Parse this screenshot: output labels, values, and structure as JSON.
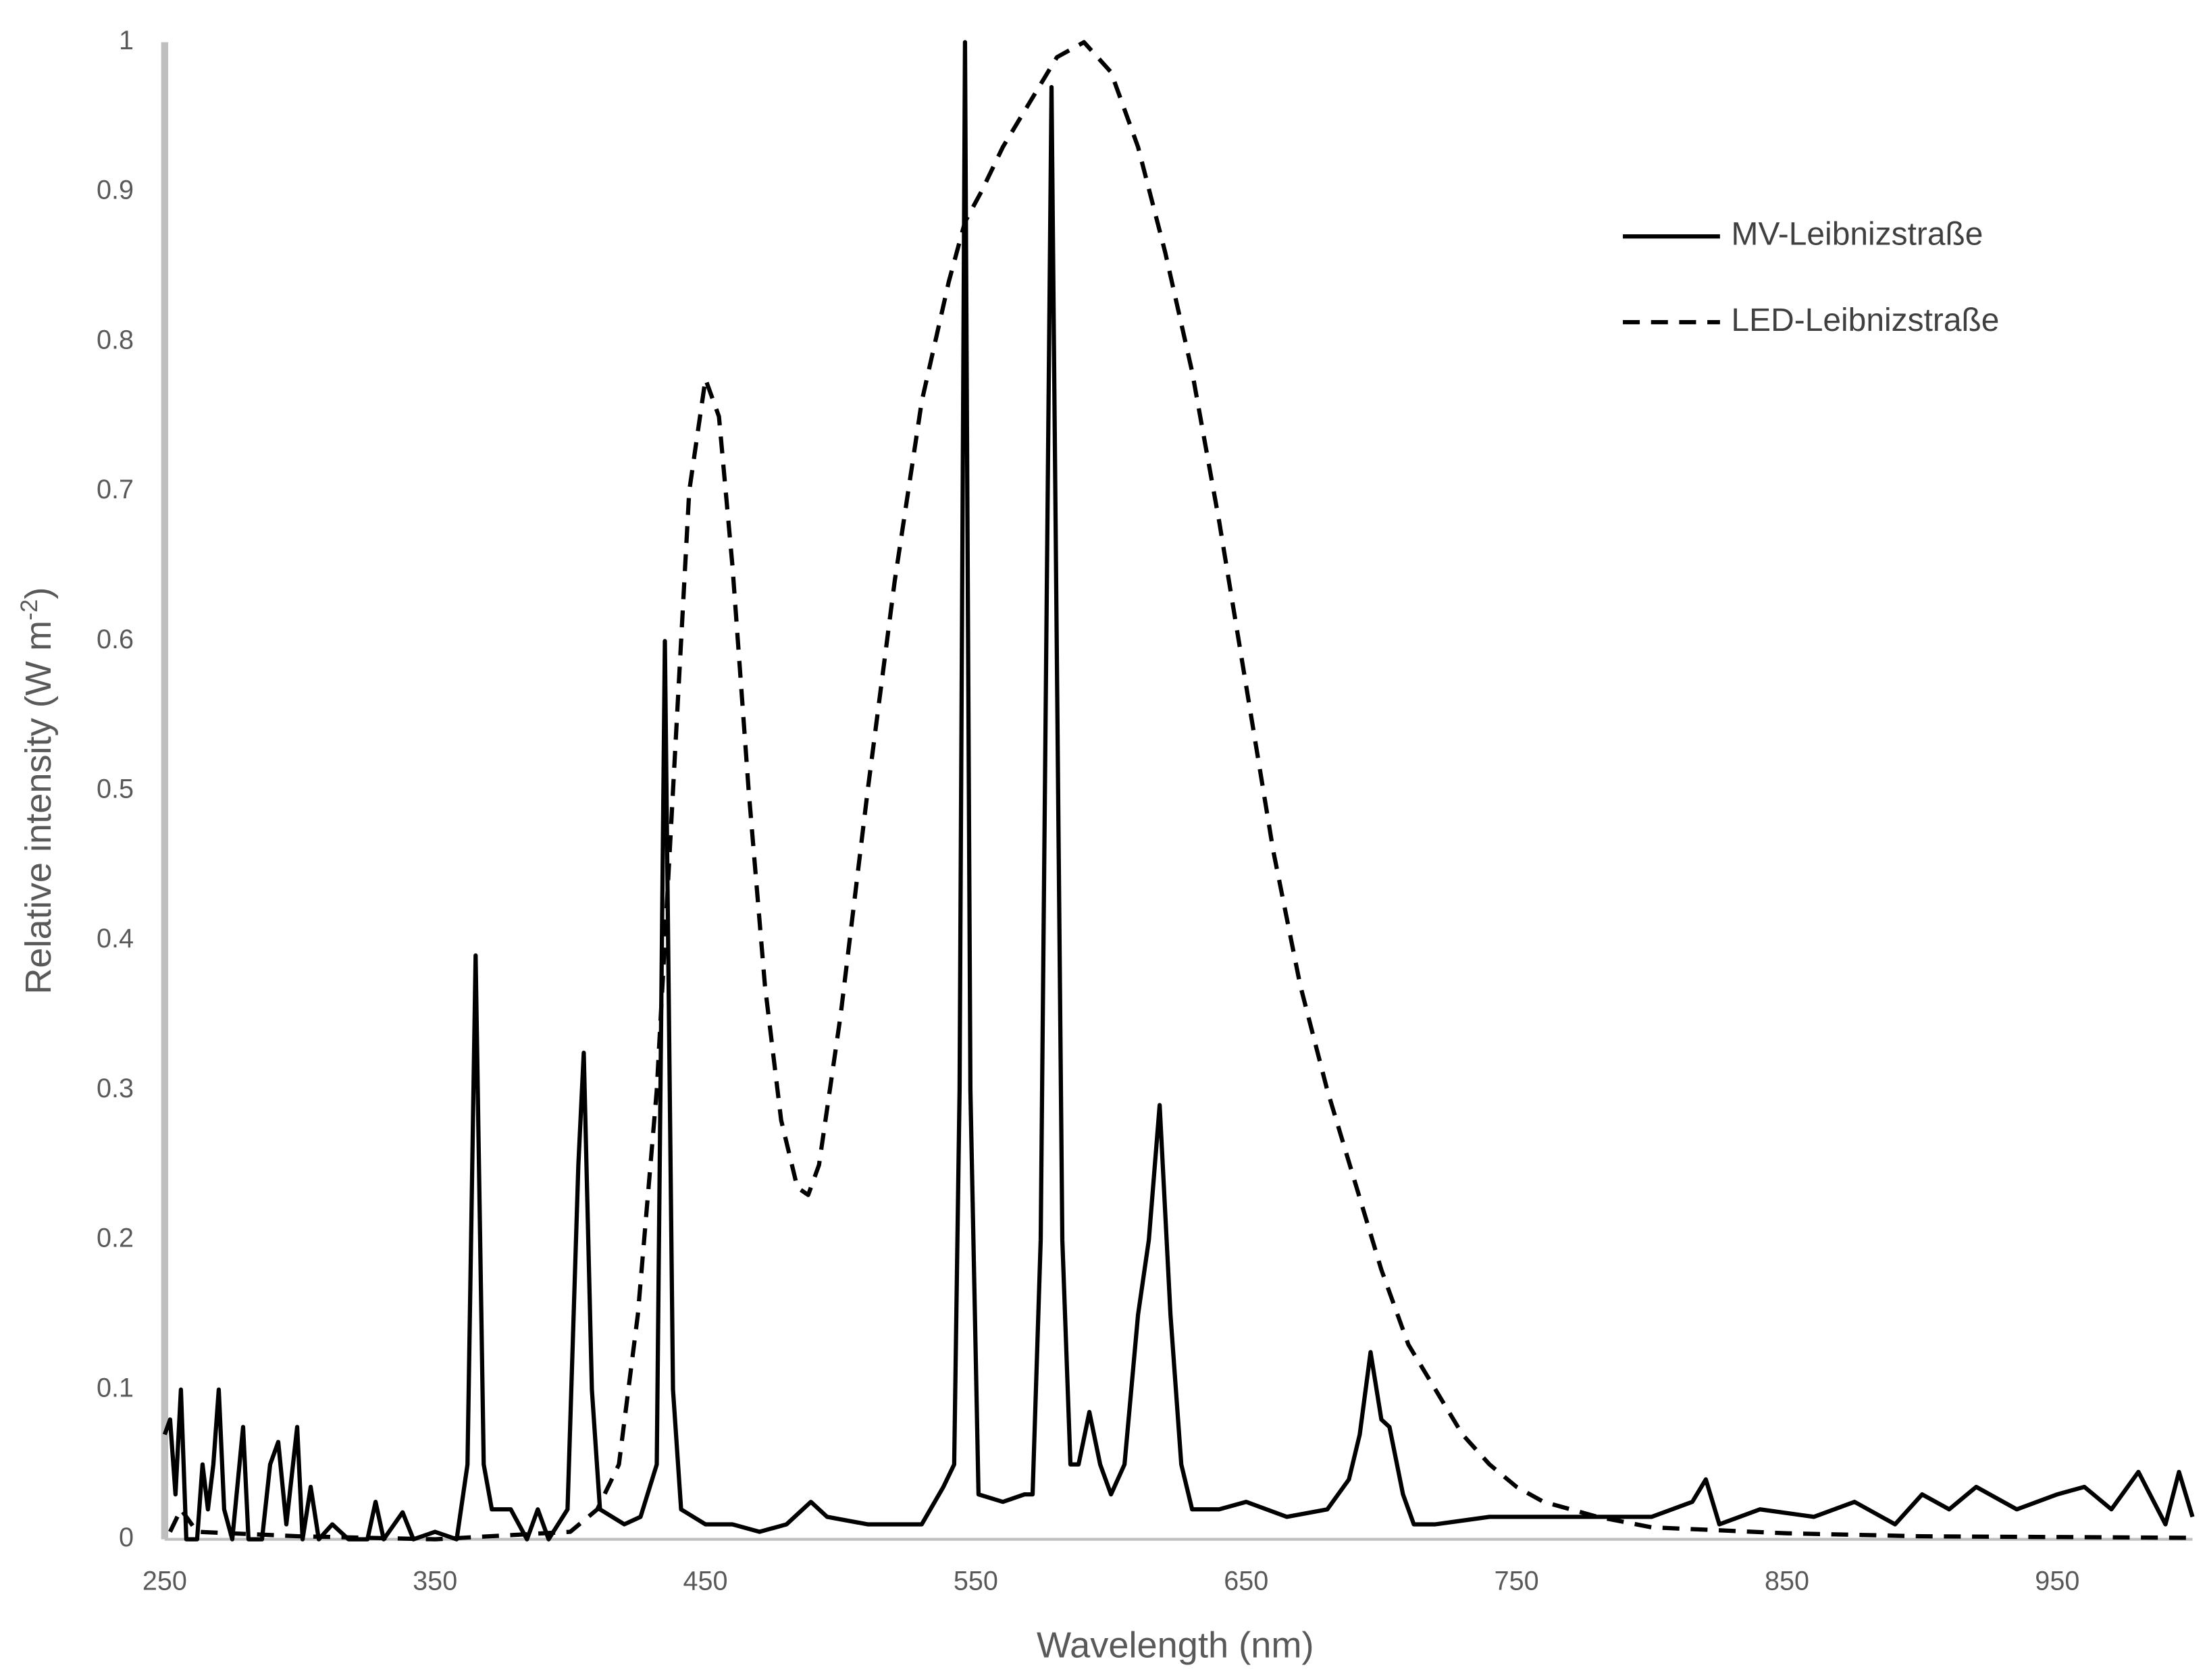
{
  "chart_data": {
    "type": "line",
    "x_label": "Wavelength (nm)",
    "y_label_parts": [
      "Relative intensity (W m",
      "-2",
      ")"
    ],
    "xlim": [
      250,
      1000
    ],
    "xticks": [
      250,
      350,
      450,
      550,
      650,
      750,
      850,
      950
    ],
    "ylim": [
      0,
      1
    ],
    "yticks": [
      0,
      0.1,
      0.2,
      0.3,
      0.4,
      0.5,
      0.6,
      0.7,
      0.8,
      0.9,
      1
    ],
    "grid": false,
    "legend": "upper right",
    "series": [
      {
        "name": "MV-Leibnizstraße",
        "color": "#000000",
        "line_style": "solid",
        "x": [
          250,
          252,
          254,
          256,
          258,
          262,
          264,
          266,
          268,
          270,
          272,
          275,
          279,
          281,
          286,
          289,
          292,
          295,
          299,
          301,
          304,
          307,
          312,
          318,
          325,
          328,
          331,
          338,
          342,
          350,
          358,
          362,
          365,
          368,
          371,
          378,
          384,
          388,
          392,
          399,
          403,
          405,
          408,
          411,
          420,
          426,
          432,
          435,
          438,
          441,
          450,
          460,
          470,
          480,
          489,
          495,
          510,
          530,
          538,
          542,
          544,
          546,
          548,
          551,
          560,
          568,
          571,
          574,
          578,
          582,
          585,
          588,
          592,
          596,
          600,
          605,
          610,
          614,
          618,
          622,
          626,
          630,
          640,
          650,
          665,
          680,
          688,
          692,
          696,
          700,
          703,
          708,
          712,
          720,
          740,
          760,
          780,
          800,
          815,
          820,
          825,
          840,
          860,
          875,
          890,
          900,
          910,
          920,
          935,
          950,
          960,
          970,
          980,
          990,
          995,
          1000
        ],
        "values": [
          0.07,
          0.08,
          0.03,
          0.1,
          0,
          0,
          0.05,
          0.02,
          0.05,
          0.1,
          0.02,
          0,
          0.075,
          0,
          0,
          0.05,
          0.065,
          0.01,
          0.075,
          0,
          0.035,
          0,
          0.01,
          0,
          0,
          0.025,
          0,
          0.018,
          0,
          0.005,
          0,
          0.05,
          0.39,
          0.05,
          0.02,
          0.02,
          0,
          0.02,
          0,
          0.02,
          0.25,
          0.325,
          0.1,
          0.02,
          0.01,
          0.015,
          0.05,
          0.6,
          0.1,
          0.02,
          0.01,
          0.01,
          0.005,
          0.01,
          0.025,
          0.015,
          0.01,
          0.01,
          0.035,
          0.05,
          0.3,
          1,
          0.3,
          0.03,
          0.025,
          0.03,
          0.03,
          0.2,
          0.97,
          0.2,
          0.05,
          0.05,
          0.085,
          0.05,
          0.03,
          0.05,
          0.15,
          0.2,
          0.29,
          0.15,
          0.05,
          0.02,
          0.02,
          0.025,
          0.015,
          0.02,
          0.04,
          0.07,
          0.125,
          0.08,
          0.075,
          0.03,
          0.01,
          0.01,
          0.015,
          0.015,
          0.015,
          0.015,
          0.025,
          0.04,
          0.01,
          0.02,
          0.015,
          0.025,
          0.01,
          0.03,
          0.02,
          0.035,
          0.02,
          0.03,
          0.035,
          0.02,
          0.045,
          0.01,
          0.045,
          0.015
        ]
      },
      {
        "name": "LED-Leibnizstraße",
        "color": "#000000",
        "line_style": "dashed",
        "x": [
          252,
          256,
          262,
          300,
          350,
          400,
          410,
          418,
          425,
          432,
          438,
          444,
          450,
          455,
          460,
          466,
          472,
          478,
          484,
          488,
          492,
          500,
          510,
          520,
          530,
          540,
          546,
          552,
          560,
          570,
          580,
          590,
          600,
          610,
          620,
          630,
          640,
          650,
          660,
          670,
          680,
          690,
          700,
          710,
          720,
          730,
          740,
          750,
          760,
          770,
          780,
          800,
          850,
          900,
          1000
        ],
        "values": [
          0.005,
          0.02,
          0.005,
          0.002,
          0,
          0.005,
          0.02,
          0.05,
          0.15,
          0.3,
          0.5,
          0.7,
          0.775,
          0.75,
          0.65,
          0.5,
          0.37,
          0.28,
          0.235,
          0.23,
          0.25,
          0.35,
          0.5,
          0.64,
          0.76,
          0.84,
          0.88,
          0.9,
          0.93,
          0.96,
          0.99,
          1,
          0.98,
          0.93,
          0.86,
          0.78,
          0.68,
          0.57,
          0.46,
          0.37,
          0.3,
          0.24,
          0.18,
          0.13,
          0.1,
          0.07,
          0.05,
          0.035,
          0.025,
          0.02,
          0.015,
          0.008,
          0.004,
          0.002,
          0.001
        ]
      }
    ]
  }
}
